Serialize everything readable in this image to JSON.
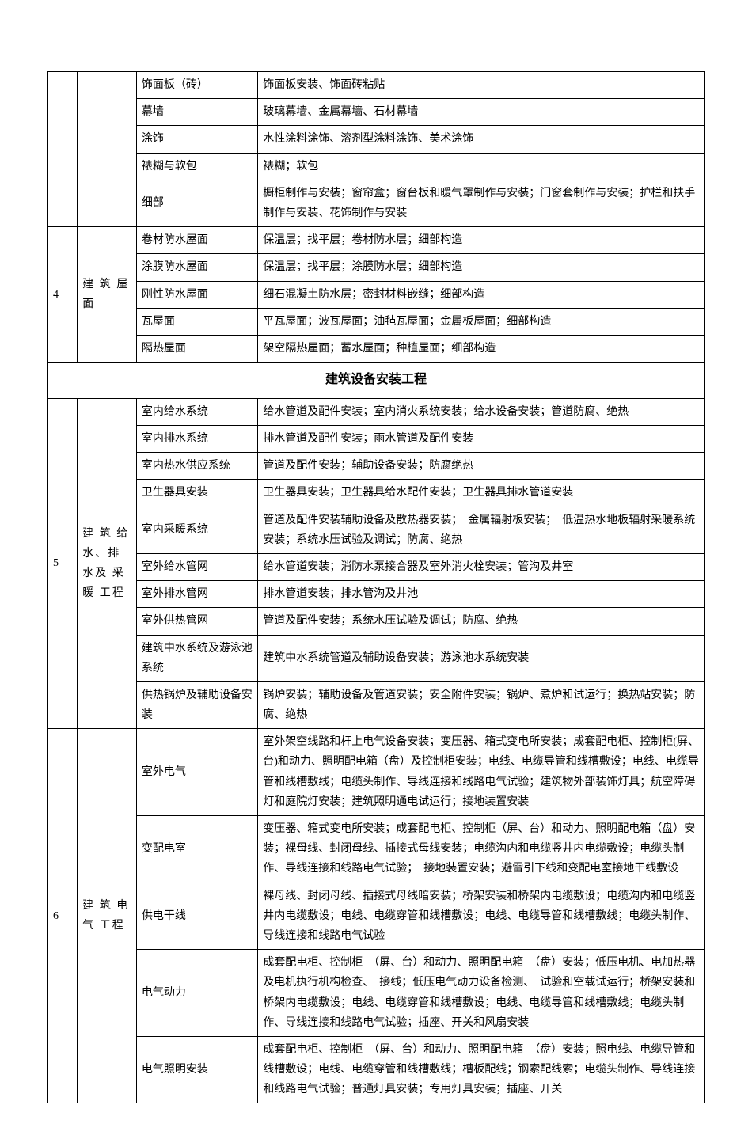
{
  "sections": {
    "top": {
      "rows": [
        {
          "sub": "饰面板（砖）",
          "desc": "饰面板安装、饰面砖粘贴"
        },
        {
          "sub": "幕墙",
          "desc": "玻璃幕墙、金属幕墙、石材幕墙"
        },
        {
          "sub": "涂饰",
          "desc": "水性涂料涂饰、溶剂型涂料涂饰、美术涂饰"
        },
        {
          "sub": "裱糊与软包",
          "desc": "裱糊；软包"
        },
        {
          "sub": "细部",
          "desc": "橱柜制作与安装；窗帘盒；窗台板和暖气罩制作与安装；门窗套制作与安装；护栏和扶手制作与安装、花饰制作与安装"
        }
      ]
    },
    "g4": {
      "num": "4",
      "cat": "建 筑 屋 面",
      "rows": [
        {
          "sub": "卷材防水屋面",
          "desc": "保温层；找平层；卷材防水层；细部构造"
        },
        {
          "sub": "涂膜防水屋面",
          "desc": "保温层；找平层；涂膜防水层；细部构造"
        },
        {
          "sub": "刚性防水屋面",
          "desc": "细石混凝土防水层；密封材料嵌缝；细部构造"
        },
        {
          "sub": "瓦屋面",
          "desc": "平瓦屋面；波瓦屋面；油毡瓦屋面；金属板屋面；细部构造"
        },
        {
          "sub": "隔热屋面",
          "desc": "架空隔热屋面；蓄水屋面；种植屋面；细部构造"
        }
      ]
    },
    "header2": "建筑设备安装工程",
    "g5": {
      "num": "5",
      "cat": "建 筑 给 水、排水及 采 暖 工程",
      "rows": [
        {
          "sub": "室内给水系统",
          "desc": "给水管道及配件安装；室内消火系统安装；给水设备安装；管道防腐、绝热"
        },
        {
          "sub": "室内排水系统",
          "desc": "排水管道及配件安装；雨水管道及配件安装"
        },
        {
          "sub": "室内热水供应系统",
          "desc": "管道及配件安装；辅助设备安装；防腐绝热"
        },
        {
          "sub": "卫生器具安装",
          "desc": "卫生器具安装；卫生器具给水配件安装；卫生器具排水管道安装"
        },
        {
          "sub": "室内采暖系统",
          "desc": "管道及配件安装辅助设备及散热器安装；　金属辐射板安装；　低温热水地板辐射采暖系统安装；系统水压试验及调试；防腐、绝热"
        },
        {
          "sub": "室外给水管网",
          "desc": "给水管道安装；消防水泵接合器及室外消火栓安装；管沟及井室"
        },
        {
          "sub": "室外排水管网",
          "desc": "排水管道安装；排水管沟及井池"
        },
        {
          "sub": "室外供热管网",
          "desc": "管道及配件安装；系统水压试验及调试；防腐、绝热"
        },
        {
          "sub": "建筑中水系统及游泳池系统",
          "desc": "建筑中水系统管道及辅助设备安装；游泳池水系统安装"
        },
        {
          "sub": "供热锅炉及辅助设备安装",
          "desc": "锅炉安装；辅助设备及管道安装；安全附件安装；锅炉、煮炉和试运行；换热站安装；防腐、绝热"
        }
      ]
    },
    "g6": {
      "num": "6",
      "cat": "建 筑 电 气 工程",
      "rows": [
        {
          "sub": "室外电气",
          "desc": "室外架空线路和杆上电气设备安装；变压器、箱式变电所安装；成套配电柜、控制柜(屏、台)和动力、照明配电箱（盘）及控制柜安装；电线、电缆导管和线槽敷设；电线、电缆导管和线槽敷线；电缆头制作、导线连接和线路电气试验；建筑物外部装饰灯具；航空障碍灯和庭院灯安装；建筑照明通电试运行；接地装置安装"
        },
        {
          "sub": "变配电室",
          "desc": "变压器、箱式变电所安装；成套配电柜、控制柜（屏、台）和动力、照明配电箱（盘）安装；裸母线、封闭母线、插接式母线安装；电缆沟内和电缆竖井内电缆敷设；电缆头制作、导线连接和线路电气试验；　接地装置安装；避雷引下线和变配电室接地干线敷设"
        },
        {
          "sub": "供电干线",
          "desc": "裸母线、封闭母线、插接式母线暗安装；桥架安装和桥架内电缆敷设；电缆沟内和电缆竖井内电缆敷设；电线、电缆穿管和线槽敷设；电线、电缆导管和线槽敷线；电缆头制作、导线连接和线路电气试验"
        },
        {
          "sub": "电气动力",
          "desc": "成套配电柜、控制柜　（屏、台）和动力、照明配电箱　（盘）安装；低压电机、电加热器及电机执行机构检查、　接线；低压电气动力设备检测、　试验和空载试运行；桥架安装和桥架内电缆敷设；电线、电缆穿管和线槽敷设；电线、电缆导管和线槽敷线；电缆头制作、导线连接和线路电气试验；插座、开关和风扇安装"
        },
        {
          "sub": "电气照明安装",
          "desc": "成套配电柜、控制柜　（屏、台）和动力、照明配电箱　（盘）安装；照电线、电缆导管和线槽敷设；电线、电缆穿管和线槽敷线；槽板配线；钢索配线索；电缆头制作、导线连接和线路电气试验；普通灯具安装；专用灯具安装；插座、开关"
        }
      ]
    }
  }
}
